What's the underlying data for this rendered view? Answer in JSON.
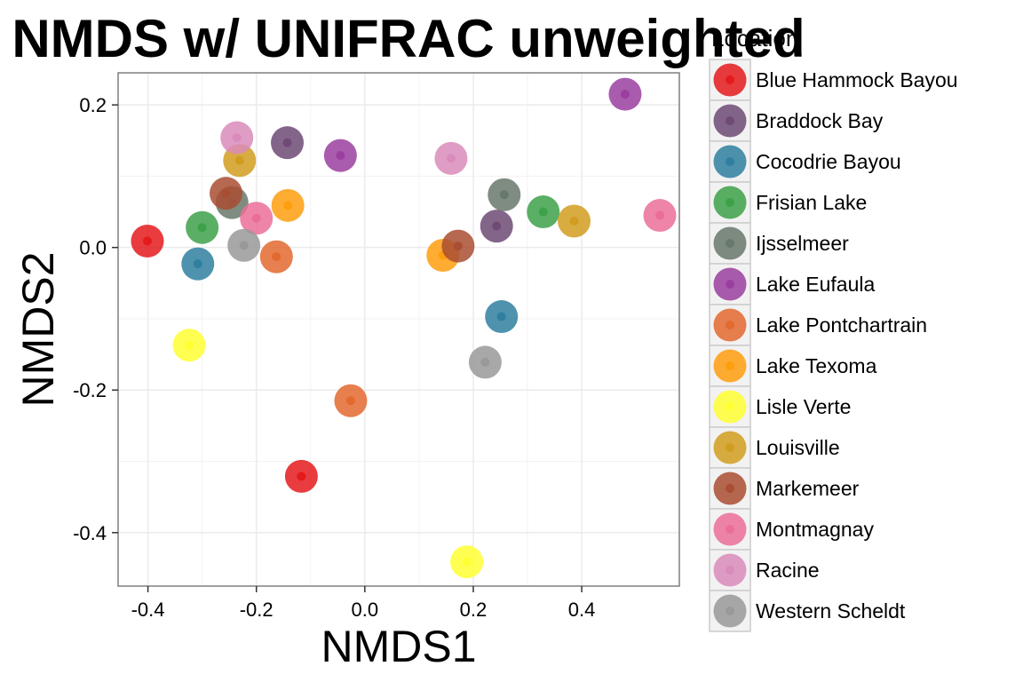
{
  "chart_data": {
    "type": "scatter",
    "title": "NMDS w/ UNIFRAC unweighted",
    "xlabel": "NMDS1",
    "ylabel": "NMDS2",
    "xlim": [
      -0.455,
      0.58
    ],
    "ylim": [
      -0.475,
      0.245
    ],
    "xticks": [
      -0.4,
      -0.2,
      0.0,
      0.2,
      0.4
    ],
    "xtick_labels": [
      "-0.4",
      "-0.2",
      "0.0",
      "0.2",
      "0.4"
    ],
    "yticks": [
      0.2,
      0.0,
      -0.2,
      -0.4
    ],
    "ytick_labels": [
      "0.2",
      "0.0",
      "-0.2",
      "-0.4"
    ],
    "grid": true,
    "legend": {
      "title": "Location",
      "placement": "right"
    },
    "series": [
      {
        "name": "Blue Hammock Bayou",
        "color": "#e41a1c",
        "points": [
          [
            -0.401,
            0.009
          ],
          [
            -0.117,
            -0.321
          ]
        ]
      },
      {
        "name": "Braddock Bay",
        "color": "#6e4a75",
        "points": [
          [
            -0.143,
            0.147
          ],
          [
            0.243,
            0.03
          ]
        ]
      },
      {
        "name": "Cocodrie Bayou",
        "color": "#2f7fa0",
        "points": [
          [
            -0.308,
            -0.023
          ],
          [
            0.252,
            -0.097
          ]
        ]
      },
      {
        "name": "Frisian Lake",
        "color": "#3da14a",
        "points": [
          [
            -0.3,
            0.028
          ],
          [
            0.329,
            0.05
          ]
        ]
      },
      {
        "name": "Ijsselmeer",
        "color": "#68786b",
        "points": [
          [
            -0.245,
            0.063
          ],
          [
            0.257,
            0.074
          ]
        ]
      },
      {
        "name": "Lake Eufaula",
        "color": "#9a3f9f",
        "points": [
          [
            -0.045,
            0.129
          ],
          [
            0.48,
            0.215
          ]
        ]
      },
      {
        "name": "Lake Pontchartrain",
        "color": "#e3692f",
        "points": [
          [
            -0.163,
            -0.013
          ],
          [
            -0.026,
            -0.215
          ]
        ]
      },
      {
        "name": "Lake Texoma",
        "color": "#ff9e0e",
        "points": [
          [
            -0.142,
            0.059
          ],
          [
            0.144,
            -0.011
          ]
        ]
      },
      {
        "name": "Lisle Verte",
        "color": "#ffff33",
        "points": [
          [
            -0.324,
            -0.137
          ],
          [
            0.188,
            -0.441
          ]
        ]
      },
      {
        "name": "Louisville",
        "color": "#d19d20",
        "points": [
          [
            -0.231,
            0.122
          ],
          [
            0.386,
            0.037
          ]
        ]
      },
      {
        "name": "Markemeer",
        "color": "#a94d33",
        "points": [
          [
            -0.256,
            0.076
          ],
          [
            0.172,
            0.002
          ]
        ]
      },
      {
        "name": "Montmagnay",
        "color": "#eb6e98",
        "points": [
          [
            -0.2,
            0.041
          ],
          [
            0.544,
            0.045
          ]
        ]
      },
      {
        "name": "Racine",
        "color": "#d98bbb",
        "points": [
          [
            -0.236,
            0.154
          ],
          [
            0.159,
            0.125
          ]
        ]
      },
      {
        "name": "Western Scheldt",
        "color": "#999999",
        "points": [
          [
            -0.223,
            0.003
          ],
          [
            0.222,
            -0.161
          ]
        ]
      }
    ]
  }
}
